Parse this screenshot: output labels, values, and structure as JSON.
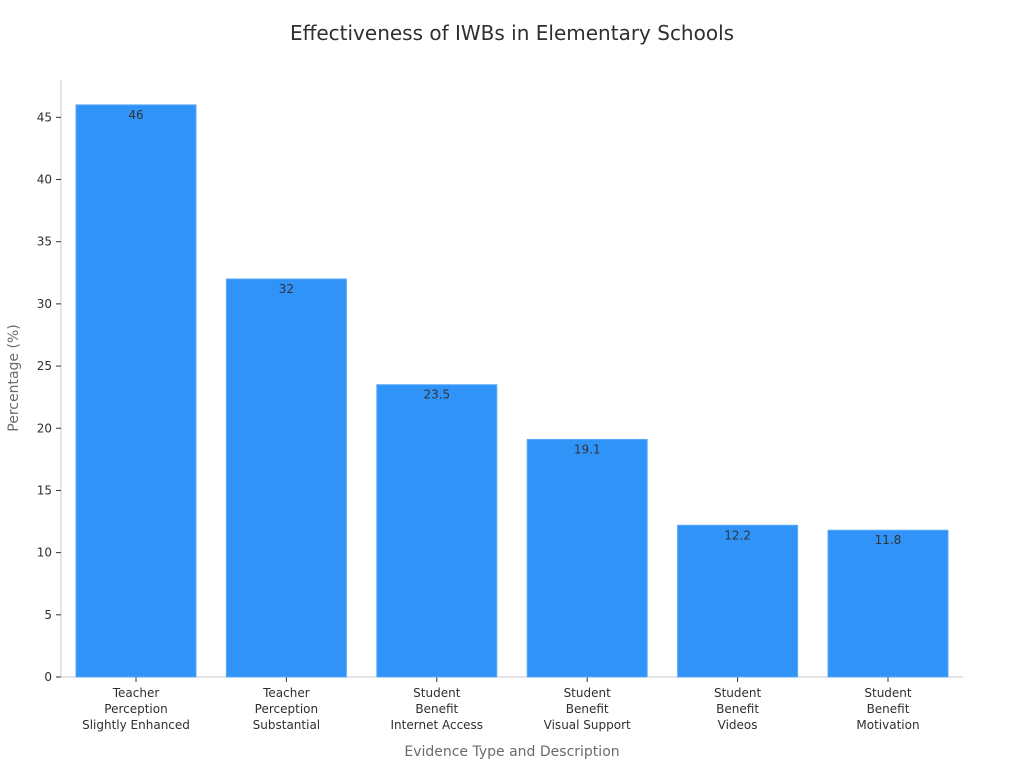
{
  "chart_data": {
    "type": "bar",
    "title": "Effectiveness of IWBs in Elementary Schools",
    "xlabel": "Evidence Type and Description",
    "ylabel": "Percentage (%)",
    "categories": [
      [
        "Teacher",
        "Perception",
        "Slightly Enhanced"
      ],
      [
        "Teacher",
        "Perception",
        "Substantial"
      ],
      [
        "Student",
        "Benefit",
        "Internet Access"
      ],
      [
        "Student",
        "Benefit",
        "Visual Support"
      ],
      [
        "Student",
        "Benefit",
        "Videos"
      ],
      [
        "Student",
        "Benefit",
        "Motivation"
      ]
    ],
    "values": [
      46,
      32,
      23.5,
      19.1,
      12.2,
      11.8
    ],
    "value_labels": [
      "46",
      "32",
      "23.5",
      "19.1",
      "12.2",
      "11.8"
    ],
    "ylim": [
      0,
      48
    ],
    "yticks": [
      0,
      5,
      10,
      15,
      20,
      25,
      30,
      35,
      40,
      45
    ],
    "grid": false,
    "legend": "none",
    "colors": {
      "bar": "#2f93f8",
      "bar_edge": "#5aaaf8",
      "axis": "#cccccc"
    }
  }
}
